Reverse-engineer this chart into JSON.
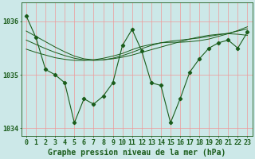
{
  "title": "Graphe pression niveau de la mer (hPa)",
  "bg_color": "#cce8e8",
  "grid_color": "#ee9999",
  "line_color": "#1a5c1a",
  "hours": [
    0,
    1,
    2,
    3,
    4,
    5,
    6,
    7,
    8,
    9,
    10,
    11,
    12,
    13,
    14,
    15,
    16,
    17,
    18,
    19,
    20,
    21,
    22,
    23
  ],
  "pressure": [
    1036.1,
    1035.7,
    1035.1,
    1035.0,
    1034.85,
    1034.1,
    1034.55,
    1034.45,
    1034.6,
    1034.85,
    1035.55,
    1035.85,
    1035.45,
    1034.85,
    1034.8,
    1034.1,
    1034.55,
    1035.05,
    1035.3,
    1035.5,
    1035.6,
    1035.65,
    1035.5,
    1035.8
  ],
  "smooth_lines": [
    [
      1035.82,
      1035.72,
      1035.62,
      1035.52,
      1035.43,
      1035.35,
      1035.3,
      1035.28,
      1035.28,
      1035.3,
      1035.33,
      1035.37,
      1035.42,
      1035.47,
      1035.52,
      1035.57,
      1035.62,
      1035.67,
      1035.71,
      1035.74,
      1035.76,
      1035.77,
      1035.76,
      1035.74
    ],
    [
      1035.65,
      1035.57,
      1035.49,
      1035.42,
      1035.36,
      1035.31,
      1035.28,
      1035.27,
      1035.28,
      1035.31,
      1035.36,
      1035.42,
      1035.49,
      1035.55,
      1035.6,
      1035.63,
      1035.65,
      1035.67,
      1035.69,
      1035.72,
      1035.75,
      1035.78,
      1035.82,
      1035.86
    ],
    [
      1035.48,
      1035.42,
      1035.37,
      1035.32,
      1035.29,
      1035.27,
      1035.27,
      1035.28,
      1035.31,
      1035.35,
      1035.4,
      1035.47,
      1035.53,
      1035.57,
      1035.6,
      1035.61,
      1035.61,
      1035.62,
      1035.64,
      1035.67,
      1035.72,
      1035.77,
      1035.83,
      1035.9
    ]
  ],
  "ylim": [
    1033.85,
    1036.35
  ],
  "yticks": [
    1034.0,
    1035.0,
    1036.0
  ],
  "tick_fontsize": 6.0,
  "xlabel_fontsize": 7.0,
  "marker": "D",
  "marker_size": 2.2
}
